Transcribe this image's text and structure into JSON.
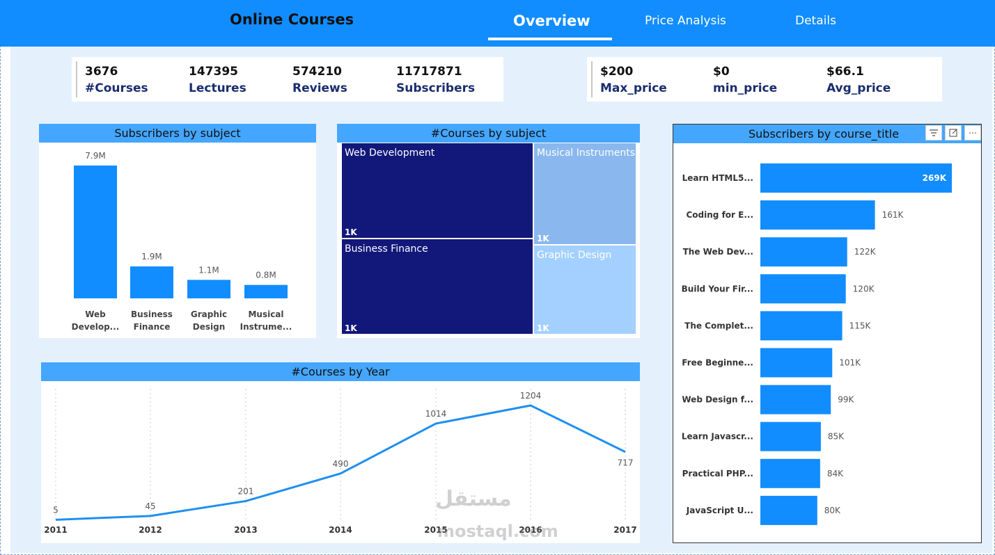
{
  "header": {
    "title": "Online Courses",
    "tabs": [
      {
        "label": "Overview",
        "active": true
      },
      {
        "label": "Price Analysis",
        "active": false
      },
      {
        "label": "Details",
        "active": false
      }
    ],
    "bg_color": "#118DFF"
  },
  "kpis": {
    "courses": {
      "value": "3676",
      "label": "#Courses"
    },
    "lectures": {
      "value": "147395",
      "label": "Lectures"
    },
    "reviews": {
      "value": "574210",
      "label": "Reviews"
    },
    "subscribers": {
      "value": "11717871",
      "label": "Subscribers"
    },
    "max_price": {
      "value": "$200",
      "label": "Max_price"
    },
    "min_price": {
      "value": "$0",
      "label": "min_price"
    },
    "avg_price": {
      "value": "$66.1",
      "label": "Avg_price"
    }
  },
  "icons": {
    "filter": "filter-icon",
    "focus": "focus-mode-icon",
    "more": "more-options-icon"
  },
  "watermark": {
    "text": "مستقل",
    "sub": "mostaql.com"
  },
  "chart_data": [
    {
      "id": "subscribers_by_subject",
      "type": "bar",
      "title": "Subscribers by subject",
      "categories": [
        [
          "Web",
          "Develop..."
        ],
        [
          "Business",
          "Finance"
        ],
        [
          "Graphic",
          "Design"
        ],
        [
          "Musical",
          "Instrume..."
        ]
      ],
      "values": [
        7.9,
        1.9,
        1.1,
        0.8
      ],
      "data_labels": [
        "7.9M",
        "1.9M",
        "1.1M",
        "0.8M"
      ],
      "color": "#118DFF",
      "ylim": [
        0,
        7.9
      ]
    },
    {
      "id": "courses_by_subject",
      "type": "treemap",
      "title": "#Courses by subject",
      "items": [
        {
          "name": "Web Development",
          "label": "1K",
          "value": 1200,
          "color": "#12177A"
        },
        {
          "name": "Business Finance",
          "label": "1K",
          "value": 1195,
          "color": "#12177A"
        },
        {
          "name": "Musical Instruments",
          "label": "1K",
          "value": 680,
          "color": "#8AB8EE"
        },
        {
          "name": "Graphic Design",
          "label": "1K",
          "value": 601,
          "color": "#A3D0FF"
        }
      ]
    },
    {
      "id": "subscribers_by_course_title",
      "type": "bar",
      "orientation": "horizontal",
      "title": "Subscribers by course_title",
      "categories": [
        "Learn HTML5...",
        "Coding for E...",
        "The Web Dev...",
        "Build Your Fir...",
        "The Complet...",
        "Free Beginne...",
        "Web Design f...",
        "Learn Javascr...",
        "Practical PHP...",
        "JavaScript U..."
      ],
      "values": [
        269,
        161,
        122,
        120,
        115,
        101,
        99,
        85,
        84,
        80
      ],
      "data_labels": [
        "269K",
        "161K",
        "122K",
        "120K",
        "115K",
        "101K",
        "99K",
        "85K",
        "84K",
        "80K"
      ],
      "color": "#118DFF",
      "xlim": [
        0,
        269
      ]
    },
    {
      "id": "courses_by_year",
      "type": "line",
      "title": "#Courses by Year",
      "x": [
        "2011",
        "2012",
        "2013",
        "2014",
        "2015",
        "2016",
        "2017"
      ],
      "values": [
        5,
        45,
        201,
        490,
        1014,
        1204,
        717
      ],
      "data_labels": [
        "5",
        "45",
        "201",
        "490",
        "1014",
        "1204",
        "717"
      ],
      "color": "#1E8FF0",
      "ylim": [
        0,
        1204
      ]
    }
  ]
}
